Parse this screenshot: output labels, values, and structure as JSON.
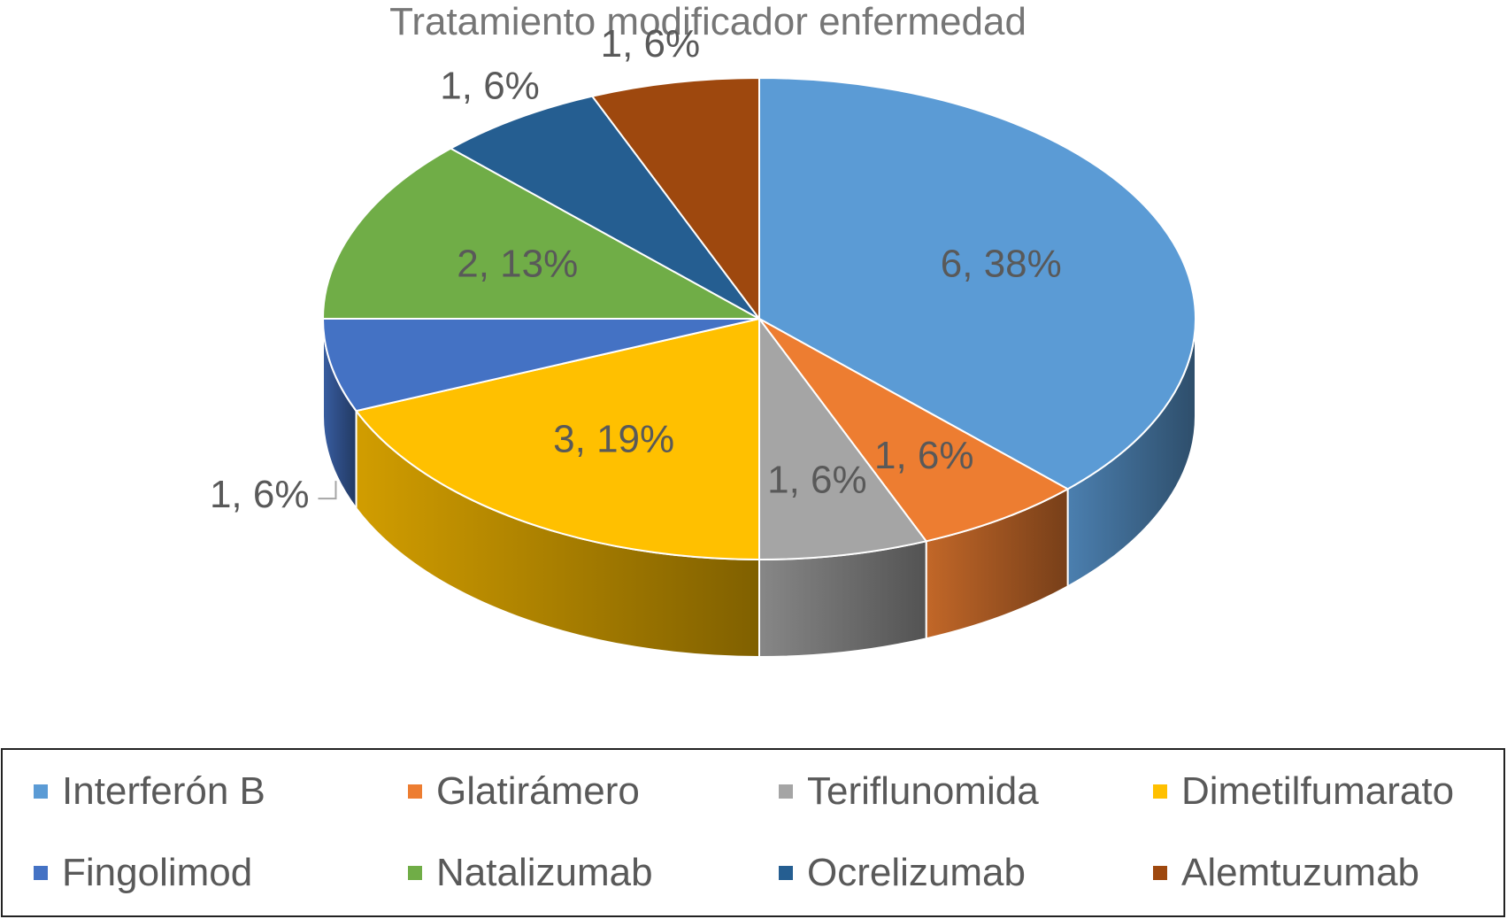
{
  "chart_data": {
    "type": "pie",
    "title": "Tratamiento modificador enfermedad",
    "three_d": true,
    "legend_position": "bottom",
    "slices": [
      {
        "name": "Interferón B",
        "value": 6,
        "label": "6, 38%",
        "color": "#5B9BD5"
      },
      {
        "name": "Glatirámero",
        "value": 1,
        "label": "1, 6%",
        "color": "#ED7D31"
      },
      {
        "name": "Teriflunomida",
        "value": 1,
        "label": "1, 6%",
        "color": "#A5A5A5"
      },
      {
        "name": "Dimetilfumarato",
        "value": 3,
        "label": "3, 19%",
        "color": "#FFC000"
      },
      {
        "name": "Fingolimod",
        "value": 1,
        "label": "1, 6%",
        "color": "#4472C4"
      },
      {
        "name": "Natalizumab",
        "value": 2,
        "label": "2, 13%",
        "color": "#70AD47"
      },
      {
        "name": "Ocrelizumab",
        "value": 1,
        "label": "1, 6%",
        "color": "#255E91"
      },
      {
        "name": "Alemtuzumab",
        "value": 1,
        "label": "1, 6%",
        "color": "#9E480E"
      }
    ]
  }
}
